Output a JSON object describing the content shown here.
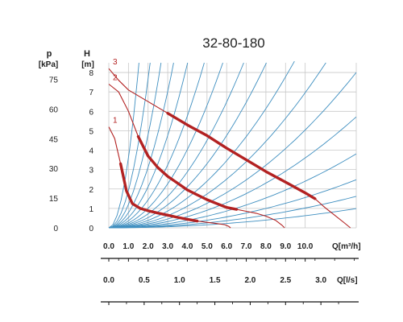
{
  "chart_data": {
    "type": "line",
    "title": "32-80-180",
    "p_axis": {
      "unit_symbol": "p",
      "unit_label": "[kPa]",
      "ticks": [
        "0",
        "15",
        "30",
        "45",
        "60",
        "75"
      ]
    },
    "h_axis": {
      "unit_symbol": "H",
      "unit_label": "[m]",
      "ticks": [
        "0",
        "1",
        "2",
        "3",
        "4",
        "5",
        "6",
        "7",
        "8"
      ],
      "ylim": [
        0,
        8.5
      ]
    },
    "q_m3h_axis": {
      "label": "Q[m³/h]",
      "ticks": [
        "0.0",
        "1.0",
        "2.0",
        "3.0",
        "4.0",
        "5.0",
        "6.0",
        "7.0",
        "8.0",
        "9.0",
        "10.0"
      ],
      "xlim": [
        0,
        12.6
      ]
    },
    "q_ls_axis": {
      "label": "Q[l/s]",
      "ticks": [
        "0.0",
        "0.5",
        "1.0",
        "1.5",
        "2.0",
        "2.5",
        "3.0"
      ]
    },
    "grid": true,
    "series": [
      {
        "name": "1",
        "color": "#b32222",
        "x": [
          0.0,
          0.3,
          0.6,
          0.9,
          1.2,
          1.6,
          2.0,
          2.5,
          3.0,
          3.5,
          4.0,
          4.5,
          5.0,
          5.5,
          5.9,
          6.1,
          6.2
        ],
        "y": [
          5.2,
          4.6,
          3.3,
          1.9,
          1.25,
          1.0,
          0.88,
          0.76,
          0.65,
          0.54,
          0.44,
          0.35,
          0.28,
          0.22,
          0.16,
          0.08,
          0.0
        ]
      },
      {
        "name": "2",
        "color": "#b32222",
        "x": [
          0.0,
          0.5,
          1.0,
          1.5,
          2.0,
          2.5,
          3.0,
          3.5,
          4.0,
          4.5,
          5.0,
          5.5,
          6.0,
          6.5,
          7.0,
          7.5,
          8.0,
          8.5,
          8.8,
          8.95
        ],
        "y": [
          7.4,
          7.0,
          6.0,
          4.7,
          3.7,
          3.1,
          2.65,
          2.3,
          1.95,
          1.7,
          1.45,
          1.25,
          1.05,
          0.95,
          0.85,
          0.75,
          0.6,
          0.38,
          0.15,
          0.0
        ]
      },
      {
        "name": "3",
        "color": "#b32222",
        "x": [
          0.0,
          0.5,
          1.0,
          2.0,
          3.0,
          4.0,
          5.0,
          6.0,
          7.0,
          8.0,
          9.0,
          10.0,
          10.5,
          11.0,
          11.5,
          12.0,
          12.3
        ],
        "y": [
          8.2,
          7.6,
          7.1,
          6.5,
          5.9,
          5.3,
          4.75,
          4.1,
          3.5,
          2.9,
          2.35,
          1.8,
          1.5,
          1.05,
          0.65,
          0.25,
          0.0
        ]
      }
    ]
  }
}
